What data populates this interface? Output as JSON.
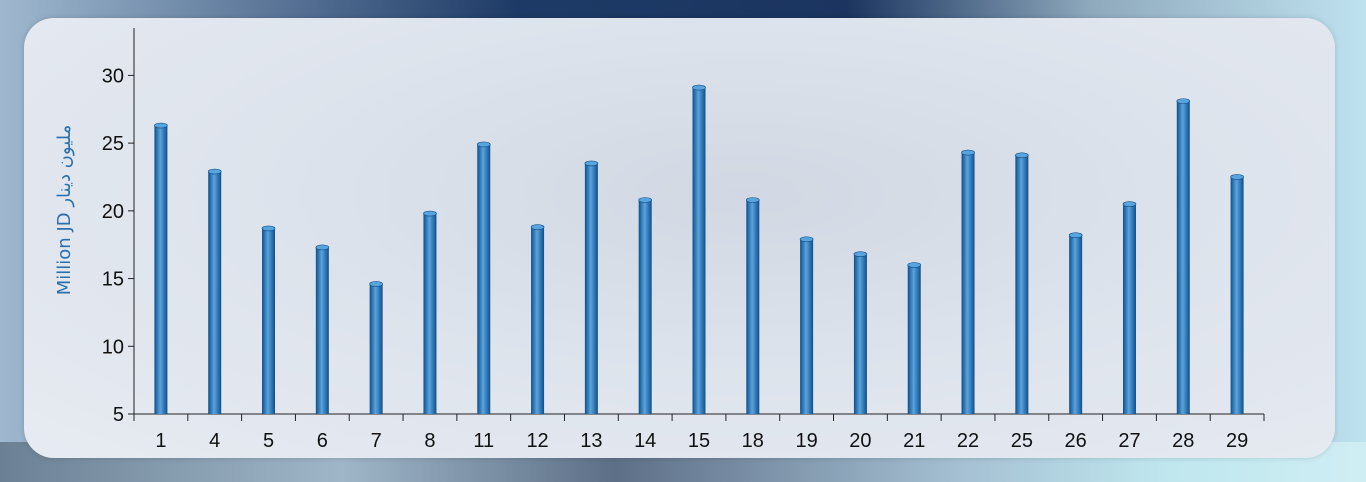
{
  "chart_data": {
    "type": "bar",
    "ylabel": "Million JD مليون دينار",
    "categories": [
      "1",
      "4",
      "5",
      "6",
      "7",
      "8",
      "11",
      "12",
      "13",
      "14",
      "15",
      "18",
      "19",
      "20",
      "21",
      "22",
      "25",
      "26",
      "27",
      "28",
      "29"
    ],
    "values": [
      26.3,
      22.9,
      18.7,
      17.3,
      14.6,
      19.8,
      24.9,
      18.8,
      23.5,
      20.8,
      29.1,
      20.8,
      17.9,
      16.8,
      16.0,
      24.3,
      24.1,
      18.2,
      20.5,
      28.1,
      22.5
    ],
    "ylim": [
      5,
      33.5
    ],
    "yticks": [
      5,
      10,
      15,
      20,
      25,
      30
    ],
    "grid": false,
    "bar_color": "#1e6fb5",
    "bar_highlight": "#5aa4de",
    "bar_shadow": "#0f4f8c"
  }
}
